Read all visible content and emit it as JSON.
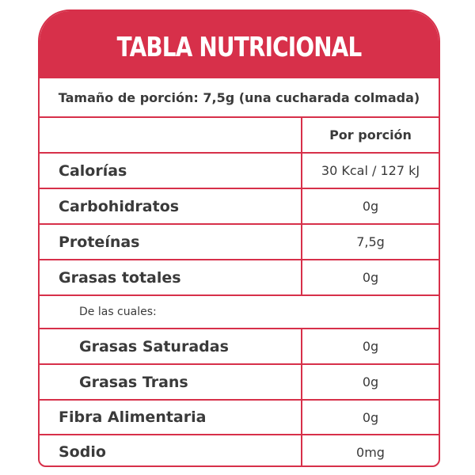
{
  "header": {
    "title": "TABLA NUTRICIONAL"
  },
  "serving": "Tamaño de porción: 7,5g (una cucharada colmada)",
  "table": {
    "column_header": "Por porción",
    "rows": [
      [
        "Calorías",
        "30 Kcal / 127 kJ"
      ],
      [
        "Carbohidratos",
        "0g"
      ],
      [
        "Proteínas",
        "7,5g"
      ],
      [
        "Grasas totales",
        "0g"
      ]
    ],
    "breakdown": {
      "label": "De las cuales:",
      "rows": [
        [
          "Grasas Saturadas",
          "0g"
        ],
        [
          "Grasas Trans",
          "0g"
        ]
      ]
    },
    "more_rows": [
      [
        "Fibra Alimentaria",
        "0g"
      ],
      [
        "Sodio",
        "0mg"
      ]
    ]
  }
}
